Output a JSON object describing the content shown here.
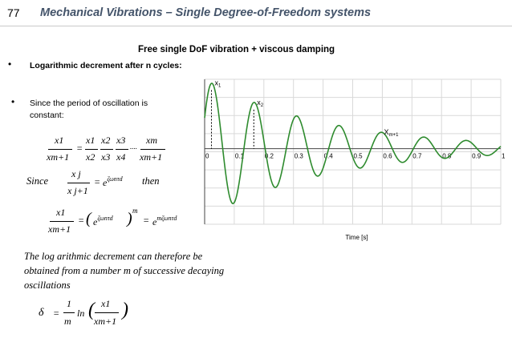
{
  "header": {
    "slide_number": "77",
    "title": "Mechanical Vibrations – Single Degree-of-Freedom systems"
  },
  "slide": {
    "subtitle": "Free single DoF vibration + viscous damping",
    "bullet1": "Logarithmic decrement after n cycles:",
    "bullet2": "Since the period of oscillation is constant:",
    "bullet_symbol": "•",
    "since_label": "Since",
    "then_label": "then",
    "conclusion": "The log arithmic decrement can therefore be obtained  from a number m of successive decaying oscillations"
  },
  "equations": {
    "x1": "x1",
    "xm": "xm",
    "xm1": "xm+1",
    "x2": "x2",
    "x3": "x3",
    "x4": "x4",
    "xj": "x j",
    "xj1": "x j+1",
    "dots": "....",
    "equals": "=",
    "e": "e",
    "exponent": "ζωnτd",
    "m_exp": "m",
    "exponent_m": "mζωnτd",
    "delta": "δ",
    "one": "1",
    "m": "m",
    "ln": "ln"
  },
  "chart_data": {
    "type": "line",
    "xlabel": "Time [s]",
    "x_ticks": [
      "0",
      "0.1",
      "0.2",
      "0.3",
      "0.4",
      "0.5",
      "0.6",
      "0.7",
      "0.8",
      "0.9",
      "1"
    ],
    "xlim": [
      0,
      1
    ],
    "ylim": [
      -1.2,
      1.1
    ],
    "grid": true,
    "series": [
      {
        "color": "#2e8b2e",
        "model": {
          "amplitude": 1.0,
          "zeta": 0.055,
          "omega_d": 43.9,
          "phase": 0.46,
          "t_end": 1.0
        }
      }
    ],
    "annotations": [
      {
        "label": "x",
        "sub": "1",
        "x": 0.023,
        "y": 0.98
      },
      {
        "label": "x",
        "sub": "2",
        "x": 0.166,
        "y": 0.67
      },
      {
        "label": "X",
        "sub": "m+1",
        "x": 0.595,
        "y": 0.2
      }
    ]
  }
}
